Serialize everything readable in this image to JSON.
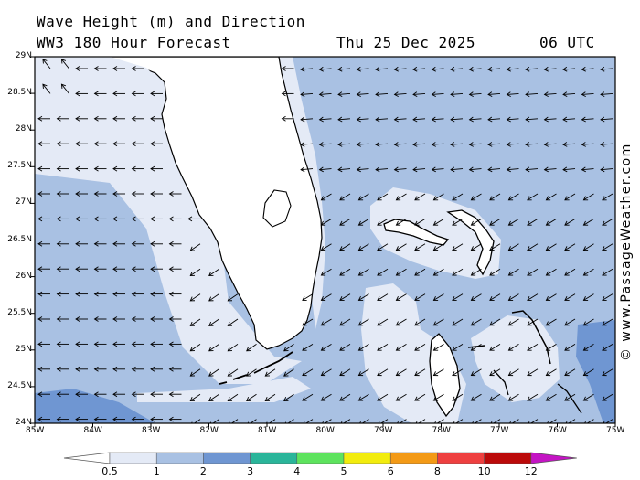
{
  "header": {
    "title": "Wave Height (m) and Direction",
    "subtitle": "WW3 180 Hour Forecast",
    "date": "Thu 25 Dec 2025",
    "time": "06 UTC"
  },
  "credit": "© www.PassageWeather.com",
  "axes": {
    "lat_labels": [
      "29N",
      "28.5N",
      "28N",
      "27.5N",
      "27N",
      "26.5N",
      "26N",
      "25.5N",
      "25N",
      "24.5N",
      "24N"
    ],
    "lon_labels": [
      "85W",
      "84W",
      "83W",
      "82W",
      "81W",
      "80W",
      "79W",
      "78W",
      "77W",
      "76W",
      "75W"
    ],
    "lat_range": [
      24,
      29
    ],
    "lon_range": [
      -85,
      -75
    ]
  },
  "colorbar": {
    "unit": "m",
    "ticks": [
      "0.5",
      "1",
      "2",
      "3",
      "4",
      "5",
      "6",
      "8",
      "10",
      "12"
    ],
    "colors": [
      "#e4eaf6",
      "#a9c1e3",
      "#6f96d2",
      "#2ab59a",
      "#5ee35e",
      "#f2ec0e",
      "#f39a16",
      "#ee4040",
      "#bb0a0a",
      "#c414c4"
    ]
  },
  "map": {
    "sea_color": "#a9c1e3",
    "shallow_color": "#e4eaf6",
    "deep_color": "#6f96d2",
    "land_color": "#ffffff",
    "wave_direction": "westward"
  }
}
